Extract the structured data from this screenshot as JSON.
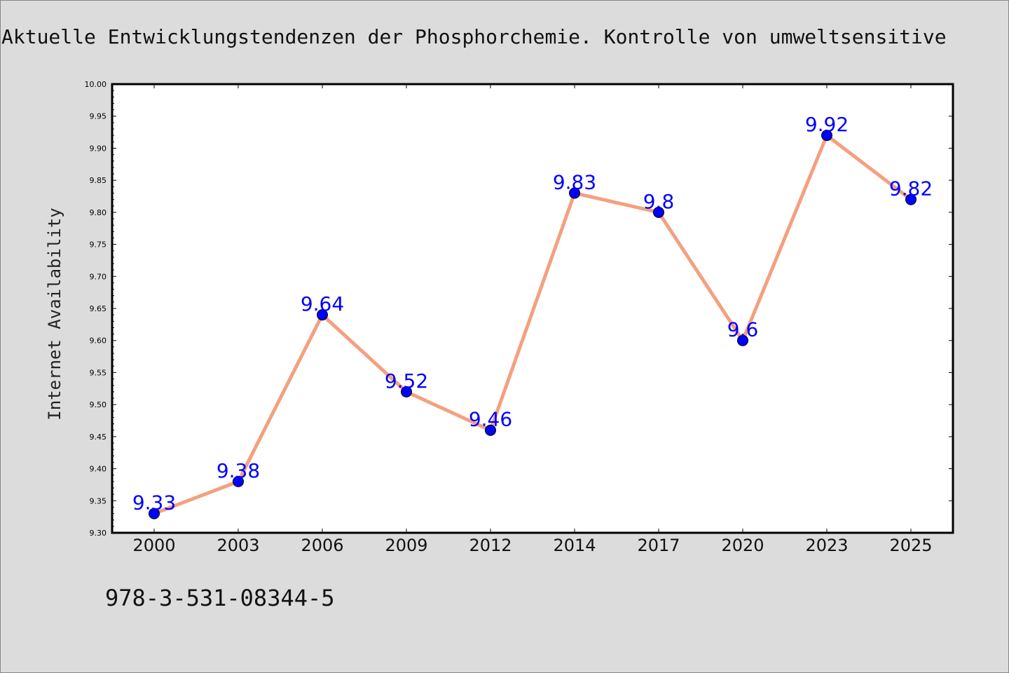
{
  "header": {
    "title": "Aktuelle Entwicklungstendenzen der Phosphorchemie. Kontrolle von umweltsensitive"
  },
  "footer": {
    "isbn": "978-3-531-08344-5"
  },
  "colors": {
    "background": "#dcdcdc",
    "plot_background": "#ffffff",
    "line": "#f4a07f",
    "marker": "#0000ff",
    "label": "#0000ff"
  },
  "chart_data": {
    "type": "line",
    "title": "Aktuelle Entwicklungstendenzen der Phosphorchemie. Kontrolle von umweltsensitive",
    "xlabel": "",
    "ylabel": "Internet Availability",
    "categories": [
      "2000",
      "2003",
      "2006",
      "2009",
      "2012",
      "2014",
      "2017",
      "2020",
      "2023",
      "2025"
    ],
    "series": [
      {
        "values": [
          9.33,
          9.38,
          9.64,
          9.52,
          9.46,
          9.83,
          9.8,
          9.6,
          9.92,
          9.82
        ],
        "labels": [
          "9.33",
          "9.38",
          "9.64",
          "9.52",
          "9.46",
          "9.83",
          "9.8",
          "9.6",
          "9.92",
          "9.82"
        ]
      }
    ],
    "ylim": [
      9.3,
      10.0
    ],
    "yticks": [
      "9.30",
      "9.35",
      "9.40",
      "9.45",
      "9.50",
      "9.55",
      "9.60",
      "9.65",
      "9.70",
      "9.75",
      "9.80",
      "9.85",
      "9.90",
      "9.95",
      "10.00"
    ],
    "grid": false,
    "legend": "none"
  }
}
